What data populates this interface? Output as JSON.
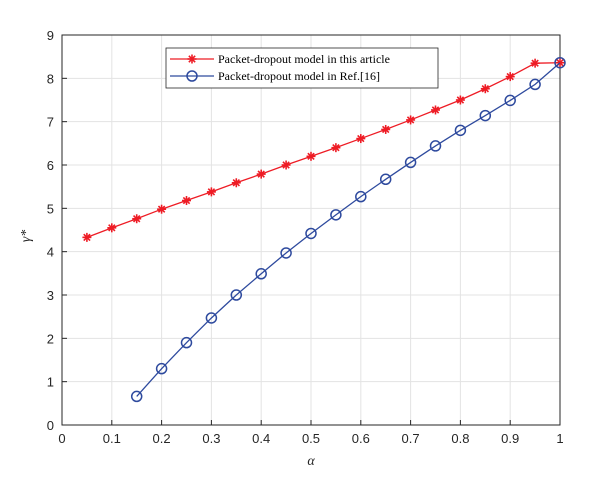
{
  "chart_data": {
    "type": "line",
    "xlabel": "α",
    "ylabel": "γ*",
    "xlim": [
      0,
      1
    ],
    "ylim": [
      0,
      9
    ],
    "xticks": [
      "0",
      "0.1",
      "0.2",
      "0.3",
      "0.4",
      "0.5",
      "0.6",
      "0.7",
      "0.8",
      "0.9",
      "1"
    ],
    "yticks": [
      "0",
      "1",
      "2",
      "3",
      "4",
      "5",
      "6",
      "7",
      "8",
      "9"
    ],
    "grid": true,
    "legend_position": "top-center",
    "series": [
      {
        "name": "Packet-dropout model in this article",
        "color": "#ee1c25",
        "marker": "asterisk",
        "x": [
          0.05,
          0.1,
          0.15,
          0.2,
          0.25,
          0.3,
          0.35,
          0.4,
          0.45,
          0.5,
          0.55,
          0.6,
          0.65,
          0.7,
          0.75,
          0.8,
          0.85,
          0.9,
          0.95,
          1.0
        ],
        "y": [
          4.33,
          4.55,
          4.76,
          4.98,
          5.18,
          5.38,
          5.59,
          5.79,
          6.0,
          6.2,
          6.4,
          6.61,
          6.82,
          7.04,
          7.27,
          7.5,
          7.76,
          8.04,
          8.35,
          8.36
        ]
      },
      {
        "name": "Packet-dropout model in Ref.[16]",
        "color": "#2e4a9e",
        "marker": "circle",
        "x": [
          0.15,
          0.2,
          0.25,
          0.3,
          0.35,
          0.4,
          0.45,
          0.5,
          0.55,
          0.6,
          0.65,
          0.7,
          0.75,
          0.8,
          0.85,
          0.9,
          0.95,
          1.0
        ],
        "y": [
          0.66,
          1.3,
          1.9,
          2.47,
          3.0,
          3.49,
          3.97,
          4.42,
          4.85,
          5.27,
          5.67,
          6.06,
          6.44,
          6.8,
          7.14,
          7.49,
          7.86,
          8.36
        ]
      }
    ]
  }
}
